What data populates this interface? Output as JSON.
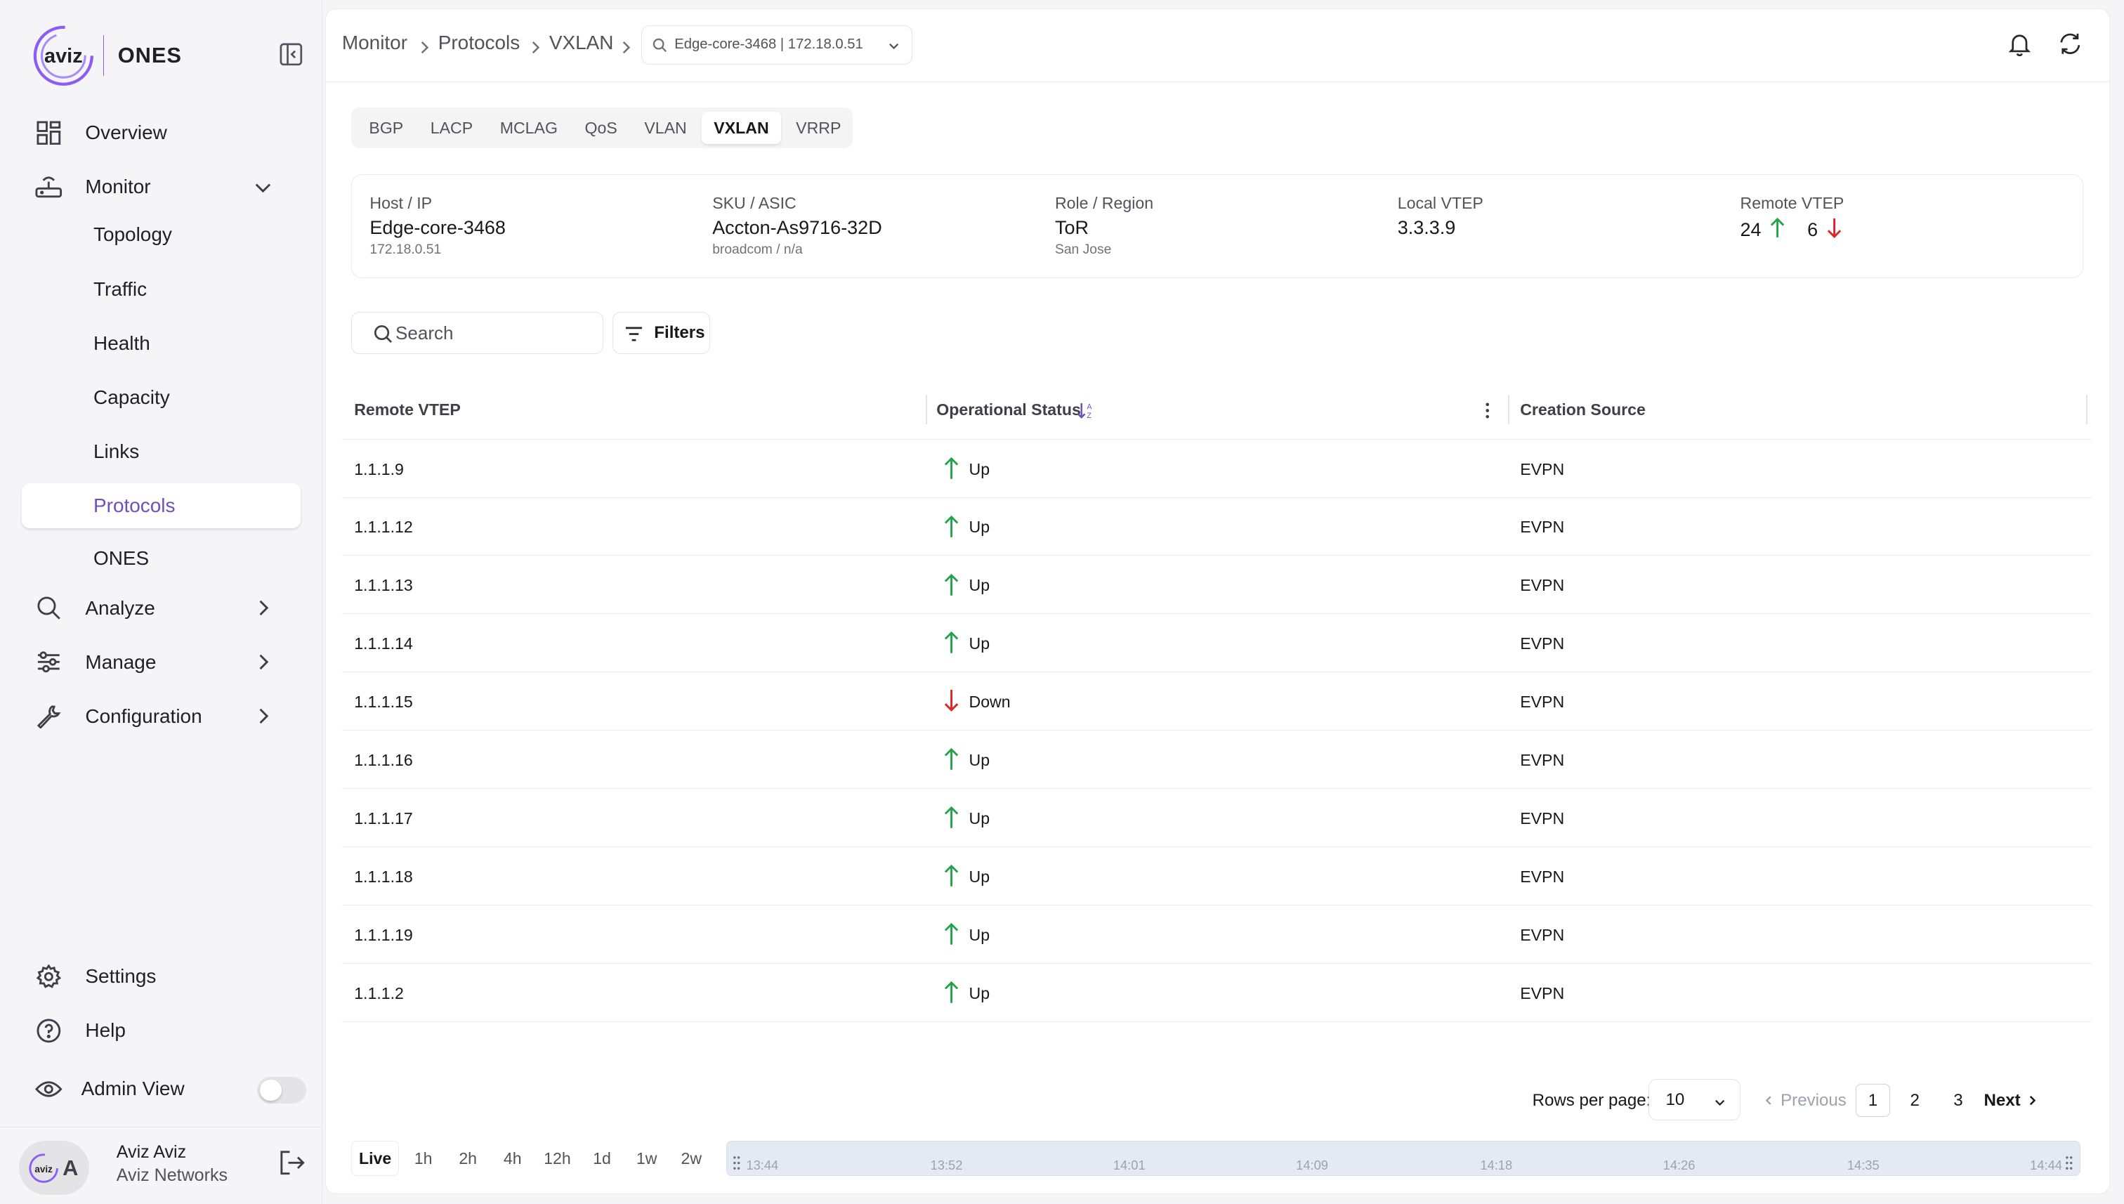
{
  "app": {
    "brand": "aviz",
    "product": "ONES"
  },
  "sidebar": {
    "overview": "Overview",
    "monitor": "Monitor",
    "monitor_items": [
      "Topology",
      "Traffic",
      "Health",
      "Capacity",
      "Links",
      "Protocols",
      "ONES"
    ],
    "analyze": "Analyze",
    "manage": "Manage",
    "configuration": "Configuration",
    "settings": "Settings",
    "help": "Help",
    "admin_view": "Admin View",
    "user_name": "Aviz Aviz",
    "user_org": "Aviz Networks",
    "avatar_text": "A"
  },
  "breadcrumb": [
    "Monitor",
    "Protocols",
    "VXLAN"
  ],
  "device_select": "Edge-core-3468 | 172.18.0.51",
  "tabs": [
    "BGP",
    "LACP",
    "MCLAG",
    "QoS",
    "VLAN",
    "VXLAN",
    "VRRP"
  ],
  "active_tab": "VXLAN",
  "info": {
    "host_label": "Host / IP",
    "host_value": "Edge-core-3468",
    "host_sub": "172.18.0.51",
    "sku_label": "SKU / ASIC",
    "sku_value": "Accton-As9716-32D",
    "sku_sub": "broadcom / n/a",
    "role_label": "Role / Region",
    "role_value": "ToR",
    "role_sub": "San Jose",
    "local_label": "Local VTEP",
    "local_value": "3.3.3.9",
    "remote_label": "Remote VTEP",
    "remote_up": "24",
    "remote_down": "6"
  },
  "search": {
    "placeholder": "Search"
  },
  "filters_label": "Filters",
  "table": {
    "columns": [
      "Remote VTEP",
      "Operational Status",
      "Creation Source"
    ],
    "rows": [
      {
        "vtep": "1.1.1.9",
        "status": "Up",
        "source": "EVPN"
      },
      {
        "vtep": "1.1.1.12",
        "status": "Up",
        "source": "EVPN"
      },
      {
        "vtep": "1.1.1.13",
        "status": "Up",
        "source": "EVPN"
      },
      {
        "vtep": "1.1.1.14",
        "status": "Up",
        "source": "EVPN"
      },
      {
        "vtep": "1.1.1.15",
        "status": "Down",
        "source": "EVPN"
      },
      {
        "vtep": "1.1.1.16",
        "status": "Up",
        "source": "EVPN"
      },
      {
        "vtep": "1.1.1.17",
        "status": "Up",
        "source": "EVPN"
      },
      {
        "vtep": "1.1.1.18",
        "status": "Up",
        "source": "EVPN"
      },
      {
        "vtep": "1.1.1.19",
        "status": "Up",
        "source": "EVPN"
      },
      {
        "vtep": "1.1.1.2",
        "status": "Up",
        "source": "EVPN"
      }
    ]
  },
  "pagination": {
    "rows_label": "Rows per page:",
    "rows_value": "10",
    "previous": "Previous",
    "pages": [
      "1",
      "2",
      "3"
    ],
    "current": "1",
    "next": "Next"
  },
  "time_range": {
    "buttons": [
      "Live",
      "1h",
      "2h",
      "4h",
      "12h",
      "1d",
      "1w",
      "2w"
    ],
    "active": "Live",
    "ticks": [
      "13:44",
      "13:52",
      "14:01",
      "14:09",
      "14:18",
      "14:26",
      "14:35",
      "14:44"
    ]
  },
  "colors": {
    "accent": "#6d4fc2",
    "up": "#22a34a",
    "down": "#dc2626"
  }
}
